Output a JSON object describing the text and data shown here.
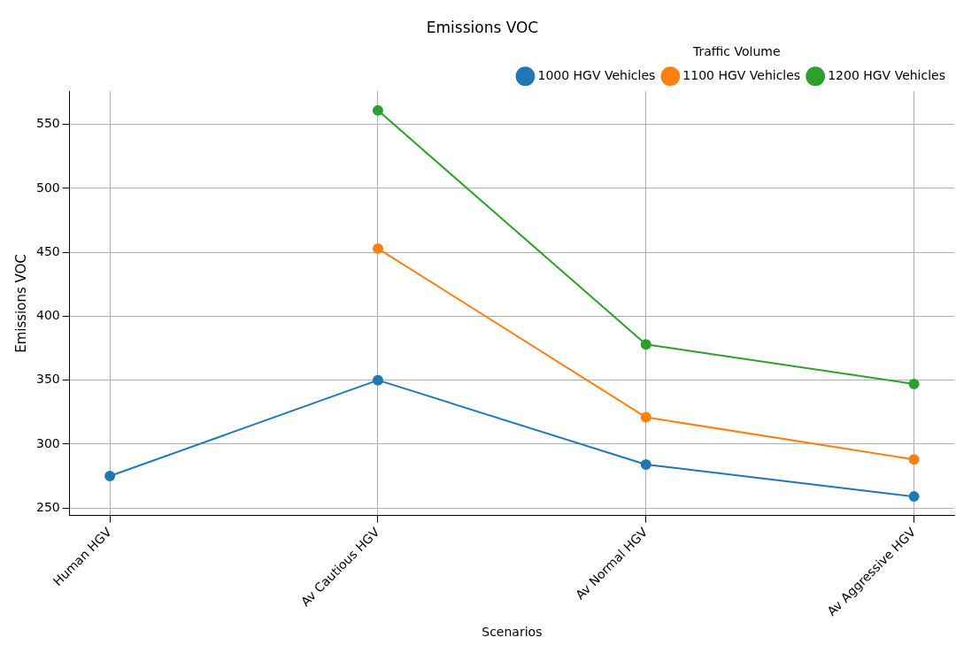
{
  "chart_data": {
    "type": "line",
    "title": "Emissions VOC",
    "xlabel": "Scenarios",
    "ylabel": "Emissions VOC",
    "legend_title": "Traffic Volume",
    "categories": [
      "Human HGV",
      "Av Cautious HGV",
      "Av Normal HGV",
      "Av Aggressive HGV"
    ],
    "series": [
      {
        "name": "1000 HGV Vehicles",
        "color": "#1f77b4",
        "values": [
          275,
          350,
          284,
          259
        ]
      },
      {
        "name": "1100 HGV Vehicles",
        "color": "#ff7f0e",
        "values": [
          null,
          453,
          321,
          288
        ]
      },
      {
        "name": "1200 HGV Vehicles",
        "color": "#2ca02c",
        "values": [
          null,
          561,
          378,
          347
        ]
      }
    ],
    "ylim": [
      244,
      576
    ],
    "yticks": [
      250,
      300,
      350,
      400,
      450,
      500,
      550
    ],
    "grid": true,
    "legend": "top right",
    "marker": "circle",
    "line_style": "solid"
  }
}
